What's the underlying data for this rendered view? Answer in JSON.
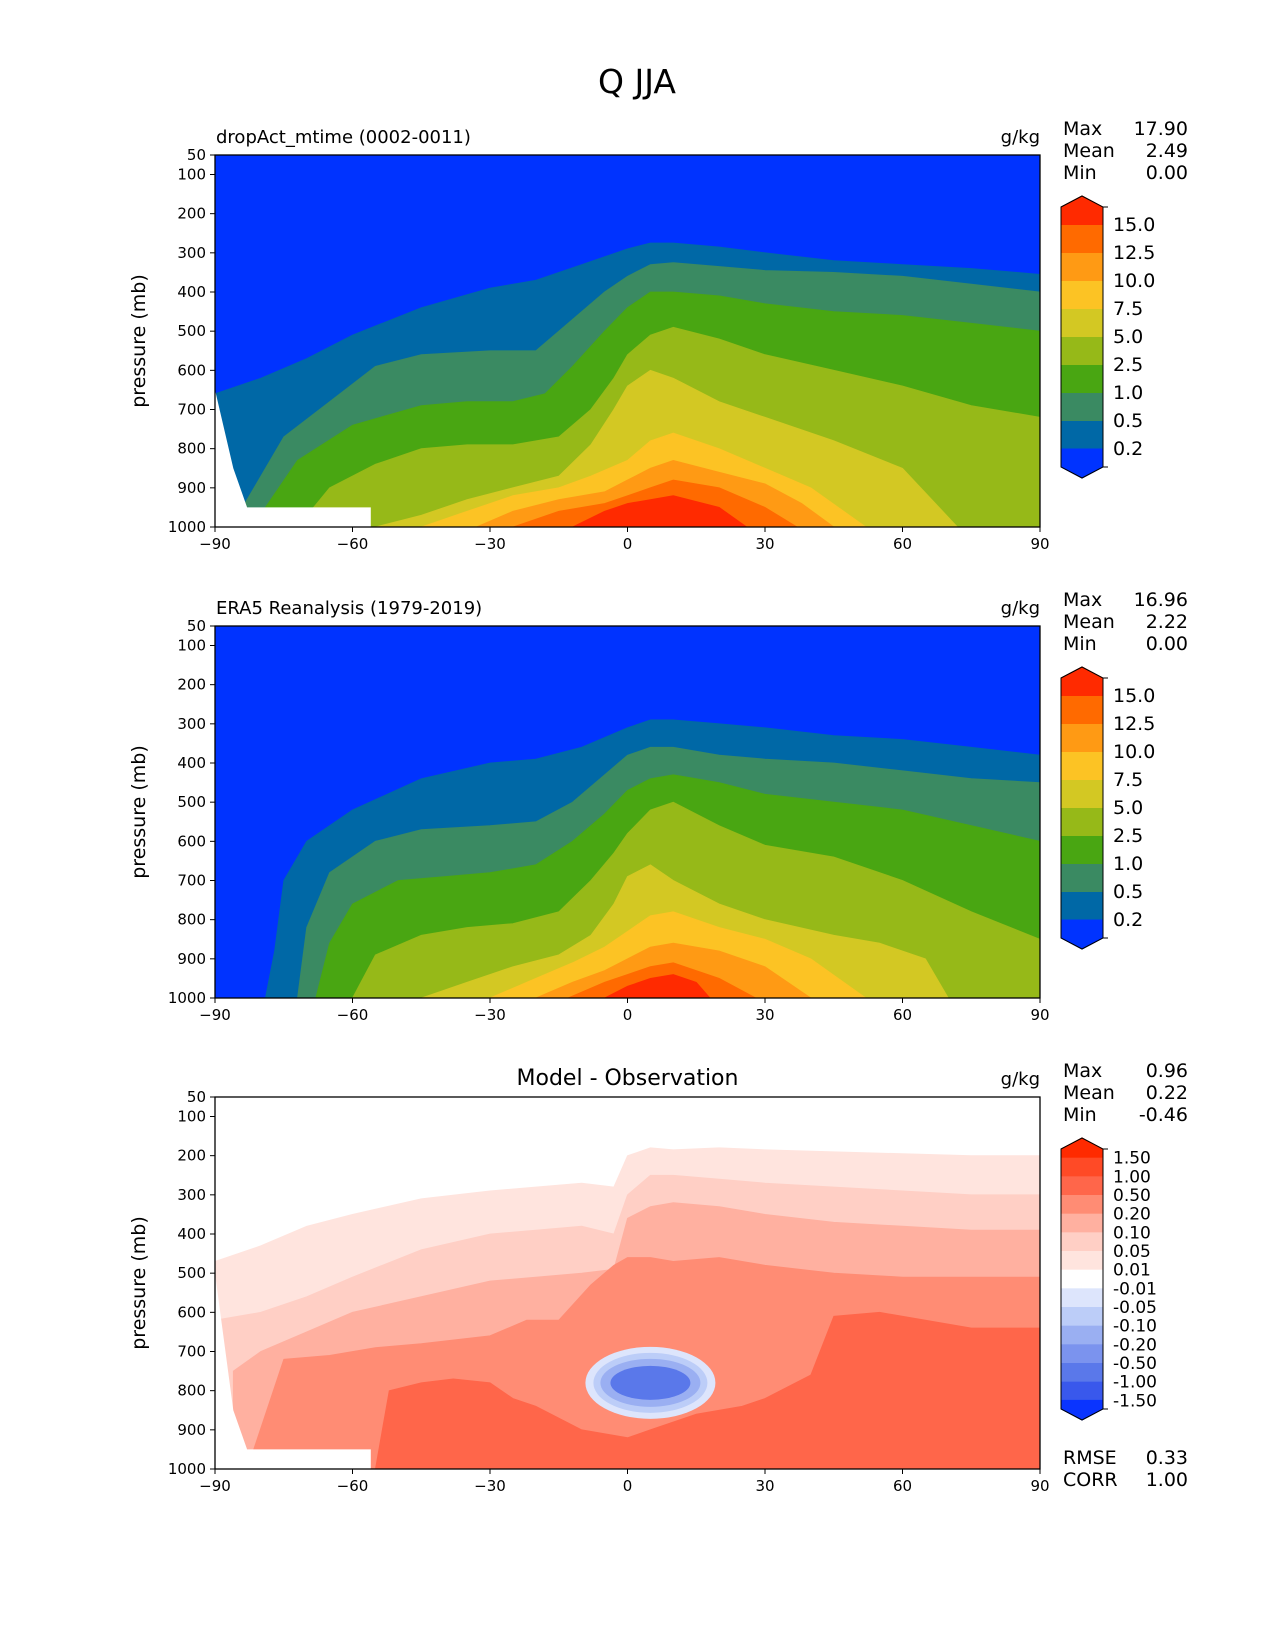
{
  "figure_title": "Q JJA",
  "chart_data": [
    {
      "type": "contour",
      "title": "dropAct_mtime (0002-0011)",
      "units": "g/kg",
      "xlabel": "",
      "ylabel": "pressure (mb)",
      "xlim": [
        -90,
        90
      ],
      "ylim": [
        1000,
        50
      ],
      "xticks": [
        "−90",
        "−60",
        "−30",
        "0",
        "30",
        "60",
        "90"
      ],
      "yticks": [
        "50",
        "100",
        "200",
        "300",
        "400",
        "500",
        "600",
        "700",
        "800",
        "900",
        "1000"
      ],
      "stats": [
        {
          "label": "Max",
          "value": "17.90"
        },
        {
          "label": "Mean",
          "value": "2.49"
        },
        {
          "label": "Min",
          "value": "0.00"
        }
      ],
      "colorbar": {
        "levels": [
          "15.0",
          "12.5",
          "10.0",
          "7.5",
          "5.0",
          "2.5",
          "1.0",
          "0.5",
          "0.2"
        ],
        "colors": [
          "#ff2a00",
          "#ff6a00",
          "#ff9a14",
          "#fcc324",
          "#d3c823",
          "#96b918",
          "#49a612",
          "#3a8a62",
          "#0068a6",
          "#0033ff"
        ]
      },
      "contours_top_pressure": [
        {
          "level": "0.2",
          "lat": [
            -90,
            -80,
            -70,
            -60,
            -45,
            -30,
            -20,
            -10,
            0,
            5,
            10,
            20,
            30,
            45,
            60,
            75,
            90
          ],
          "p": [
            660,
            620,
            570,
            510,
            440,
            390,
            370,
            330,
            290,
            275,
            275,
            285,
            300,
            320,
            330,
            340,
            355
          ]
        },
        {
          "level": "0.5",
          "lat": [
            -84,
            -75,
            -65,
            -55,
            -45,
            -30,
            -20,
            -12,
            -5,
            0,
            5,
            10,
            20,
            30,
            45,
            60,
            75,
            90
          ],
          "p": [
            950,
            770,
            680,
            590,
            560,
            550,
            550,
            470,
            400,
            360,
            330,
            325,
            335,
            345,
            350,
            360,
            380,
            400
          ]
        },
        {
          "level": "1.0",
          "lat": [
            -79,
            -72,
            -60,
            -45,
            -35,
            -25,
            -18,
            -12,
            -5,
            0,
            5,
            10,
            20,
            30,
            45,
            60,
            75,
            90
          ],
          "p": [
            950,
            830,
            740,
            690,
            680,
            680,
            660,
            590,
            500,
            440,
            400,
            400,
            410,
            430,
            450,
            460,
            480,
            500
          ]
        },
        {
          "level": "2.5",
          "lat": [
            -72,
            -65,
            -55,
            -45,
            -35,
            -25,
            -15,
            -8,
            -3,
            0,
            5,
            10,
            20,
            30,
            45,
            60,
            75,
            90
          ],
          "p": [
            1000,
            900,
            840,
            800,
            790,
            790,
            770,
            700,
            620,
            560,
            510,
            490,
            520,
            560,
            600,
            640,
            690,
            720
          ]
        },
        {
          "level": "5.0",
          "lat": [
            -55,
            -45,
            -35,
            -25,
            -15,
            -8,
            -3,
            0,
            5,
            10,
            20,
            30,
            45,
            60,
            72
          ],
          "p": [
            1000,
            970,
            930,
            900,
            870,
            790,
            700,
            640,
            600,
            620,
            680,
            720,
            780,
            850,
            1000
          ]
        },
        {
          "level": "7.5",
          "lat": [
            -45,
            -35,
            -25,
            -15,
            -8,
            0,
            5,
            10,
            20,
            30,
            40,
            52
          ],
          "p": [
            1000,
            960,
            920,
            900,
            870,
            830,
            780,
            760,
            800,
            850,
            900,
            1000
          ]
        },
        {
          "level": "10.0",
          "lat": [
            -33,
            -25,
            -15,
            -5,
            0,
            5,
            10,
            20,
            30,
            38,
            45
          ],
          "p": [
            1000,
            960,
            930,
            910,
            880,
            850,
            830,
            860,
            890,
            940,
            1000
          ]
        },
        {
          "level": "12.5",
          "lat": [
            -25,
            -15,
            -5,
            0,
            5,
            10,
            20,
            30,
            37
          ],
          "p": [
            1000,
            960,
            940,
            920,
            900,
            880,
            900,
            950,
            1000
          ]
        },
        {
          "level": "15.0",
          "lat": [
            -12,
            -5,
            0,
            5,
            10,
            20,
            26
          ],
          "p": [
            1000,
            960,
            940,
            930,
            920,
            950,
            1000
          ]
        }
      ],
      "masked_region": {
        "lat": [
          -90,
          -56
        ],
        "p_start": [
          650,
          950
        ]
      }
    },
    {
      "type": "contour",
      "title": "ERA5 Reanalysis (1979-2019)",
      "units": "g/kg",
      "xlabel": "",
      "ylabel": "pressure (mb)",
      "xlim": [
        -90,
        90
      ],
      "ylim": [
        1000,
        50
      ],
      "xticks": [
        "−90",
        "−60",
        "−30",
        "0",
        "30",
        "60",
        "90"
      ],
      "yticks": [
        "50",
        "100",
        "200",
        "300",
        "400",
        "500",
        "600",
        "700",
        "800",
        "900",
        "1000"
      ],
      "stats": [
        {
          "label": "Max",
          "value": "16.96"
        },
        {
          "label": "Mean",
          "value": "2.22"
        },
        {
          "label": "Min",
          "value": "0.00"
        }
      ],
      "colorbar": {
        "levels": [
          "15.0",
          "12.5",
          "10.0",
          "7.5",
          "5.0",
          "2.5",
          "1.0",
          "0.5",
          "0.2"
        ],
        "colors": [
          "#ff2a00",
          "#ff6a00",
          "#ff9a14",
          "#fcc324",
          "#d3c823",
          "#96b918",
          "#49a612",
          "#3a8a62",
          "#0068a6",
          "#0033ff"
        ]
      },
      "contours_top_pressure": [
        {
          "level": "0.2",
          "lat": [
            -79,
            -77,
            -75,
            -70,
            -60,
            -45,
            -30,
            -20,
            -10,
            0,
            5,
            10,
            20,
            30,
            45,
            60,
            75,
            90
          ],
          "p": [
            1000,
            880,
            700,
            600,
            520,
            440,
            400,
            390,
            360,
            310,
            290,
            290,
            300,
            310,
            330,
            340,
            360,
            380
          ]
        },
        {
          "level": "0.5",
          "lat": [
            -72,
            -70,
            -65,
            -55,
            -45,
            -30,
            -20,
            -12,
            -5,
            0,
            5,
            10,
            20,
            30,
            45,
            60,
            75,
            90
          ],
          "p": [
            1000,
            820,
            680,
            600,
            570,
            560,
            550,
            500,
            430,
            380,
            360,
            360,
            380,
            390,
            400,
            420,
            440,
            450
          ]
        },
        {
          "level": "1.0",
          "lat": [
            -68,
            -65,
            -60,
            -50,
            -40,
            -30,
            -20,
            -12,
            -5,
            0,
            5,
            10,
            20,
            30,
            45,
            60,
            75,
            90
          ],
          "p": [
            1000,
            860,
            760,
            700,
            690,
            680,
            660,
            600,
            530,
            470,
            440,
            430,
            450,
            480,
            500,
            520,
            560,
            600
          ]
        },
        {
          "level": "2.5",
          "lat": [
            -60,
            -55,
            -45,
            -35,
            -25,
            -15,
            -8,
            -3,
            0,
            5,
            10,
            20,
            30,
            45,
            60,
            75,
            90
          ],
          "p": [
            1000,
            890,
            840,
            820,
            810,
            780,
            700,
            630,
            580,
            520,
            500,
            560,
            610,
            640,
            700,
            780,
            850
          ]
        },
        {
          "level": "5.0",
          "lat": [
            -45,
            -35,
            -25,
            -15,
            -8,
            -3,
            0,
            5,
            10,
            20,
            30,
            45,
            55,
            65,
            70
          ],
          "p": [
            1000,
            960,
            920,
            890,
            840,
            760,
            690,
            660,
            700,
            760,
            800,
            840,
            860,
            900,
            1000
          ]
        },
        {
          "level": "7.5",
          "lat": [
            -30,
            -20,
            -12,
            -5,
            0,
            5,
            10,
            20,
            30,
            40,
            52
          ],
          "p": [
            1000,
            950,
            910,
            870,
            830,
            790,
            780,
            820,
            850,
            900,
            1000
          ]
        },
        {
          "level": "10.0",
          "lat": [
            -20,
            -12,
            -5,
            0,
            5,
            10,
            20,
            30,
            40
          ],
          "p": [
            1000,
            960,
            930,
            900,
            870,
            860,
            880,
            920,
            1000
          ]
        },
        {
          "level": "12.5",
          "lat": [
            -13,
            -5,
            0,
            5,
            10,
            20,
            28
          ],
          "p": [
            1000,
            960,
            940,
            920,
            910,
            950,
            1000
          ]
        },
        {
          "level": "15.0",
          "lat": [
            -5,
            0,
            5,
            10,
            15,
            18
          ],
          "p": [
            1000,
            970,
            950,
            940,
            960,
            1000
          ]
        }
      ],
      "masked_region": null
    },
    {
      "type": "contour",
      "title": "Model - Observation",
      "units": "g/kg",
      "xlabel": "",
      "ylabel": "pressure (mb)",
      "xlim": [
        -90,
        90
      ],
      "ylim": [
        1000,
        50
      ],
      "xticks": [
        "−90",
        "−60",
        "−30",
        "0",
        "30",
        "60",
        "90"
      ],
      "yticks": [
        "50",
        "100",
        "200",
        "300",
        "400",
        "500",
        "600",
        "700",
        "800",
        "900",
        "1000"
      ],
      "stats": [
        {
          "label": "Max",
          "value": "0.96"
        },
        {
          "label": "Mean",
          "value": "0.22"
        },
        {
          "label": "Min",
          "value": "-0.46"
        }
      ],
      "bottom_stats": [
        {
          "label": "RMSE",
          "value": "0.33"
        },
        {
          "label": "CORR",
          "value": "1.00"
        }
      ],
      "colorbar": {
        "levels": [
          "1.50",
          "1.00",
          "0.50",
          "0.20",
          "0.10",
          "0.05",
          "0.01",
          "-0.01",
          "-0.05",
          "-0.10",
          "-0.20",
          "-0.50",
          "-1.00",
          "-1.50"
        ],
        "colors": [
          "#ff2a00",
          "#ff4a26",
          "#ff664a",
          "#ff8c74",
          "#ffb0a0",
          "#ffcfc5",
          "#ffe4de",
          "#ffffff",
          "#dde5fc",
          "#bccdf8",
          "#9aaff2",
          "#7b93ee",
          "#5a78ea",
          "#3958ec",
          "#0a34ff"
        ]
      },
      "contours_top_pressure": [
        {
          "level": "0.01",
          "lat": [
            -90,
            -80,
            -70,
            -60,
            -45,
            -30,
            -20,
            -10,
            -3,
            0,
            5,
            10,
            20,
            30,
            45,
            60,
            75,
            90
          ],
          "p": [
            470,
            430,
            380,
            350,
            310,
            290,
            280,
            270,
            280,
            200,
            180,
            185,
            180,
            185,
            190,
            195,
            200,
            200
          ]
        },
        {
          "level": "0.05",
          "lat": [
            -90,
            -80,
            -70,
            -60,
            -45,
            -30,
            -20,
            -10,
            -3,
            0,
            5,
            10,
            20,
            30,
            45,
            60,
            75,
            90
          ],
          "p": [
            620,
            600,
            560,
            510,
            440,
            400,
            390,
            380,
            400,
            300,
            250,
            250,
            260,
            270,
            280,
            290,
            300,
            300
          ]
        },
        {
          "level": "0.10",
          "lat": [
            -86,
            -80,
            -70,
            -60,
            -45,
            -30,
            -20,
            -10,
            -3,
            0,
            5,
            10,
            20,
            30,
            45,
            60,
            75,
            90
          ],
          "p": [
            750,
            700,
            650,
            600,
            560,
            520,
            510,
            500,
            490,
            360,
            330,
            320,
            330,
            350,
            370,
            380,
            390,
            390
          ]
        },
        {
          "level": "0.20",
          "lat": [
            -83,
            -75,
            -65,
            -55,
            -45,
            -30,
            -22,
            -15,
            -8,
            -3,
            0,
            5,
            10,
            20,
            30,
            45,
            60,
            75,
            90
          ],
          "p": [
            1000,
            720,
            710,
            690,
            680,
            660,
            620,
            620,
            530,
            480,
            460,
            460,
            470,
            460,
            480,
            500,
            510,
            510,
            510
          ]
        },
        {
          "level": "0.50",
          "lat": [
            -55,
            -52,
            -45,
            -38,
            -30,
            -25,
            -20,
            -10,
            0,
            5,
            15,
            25,
            30,
            40,
            45,
            55,
            65,
            75,
            90
          ],
          "p": [
            1000,
            800,
            780,
            770,
            780,
            820,
            840,
            900,
            920,
            900,
            860,
            840,
            820,
            760,
            610,
            600,
            620,
            640,
            640
          ]
        }
      ],
      "masked_region": {
        "lat": [
          -90,
          -56
        ],
        "p_start": [
          500,
          950
        ]
      }
    }
  ]
}
